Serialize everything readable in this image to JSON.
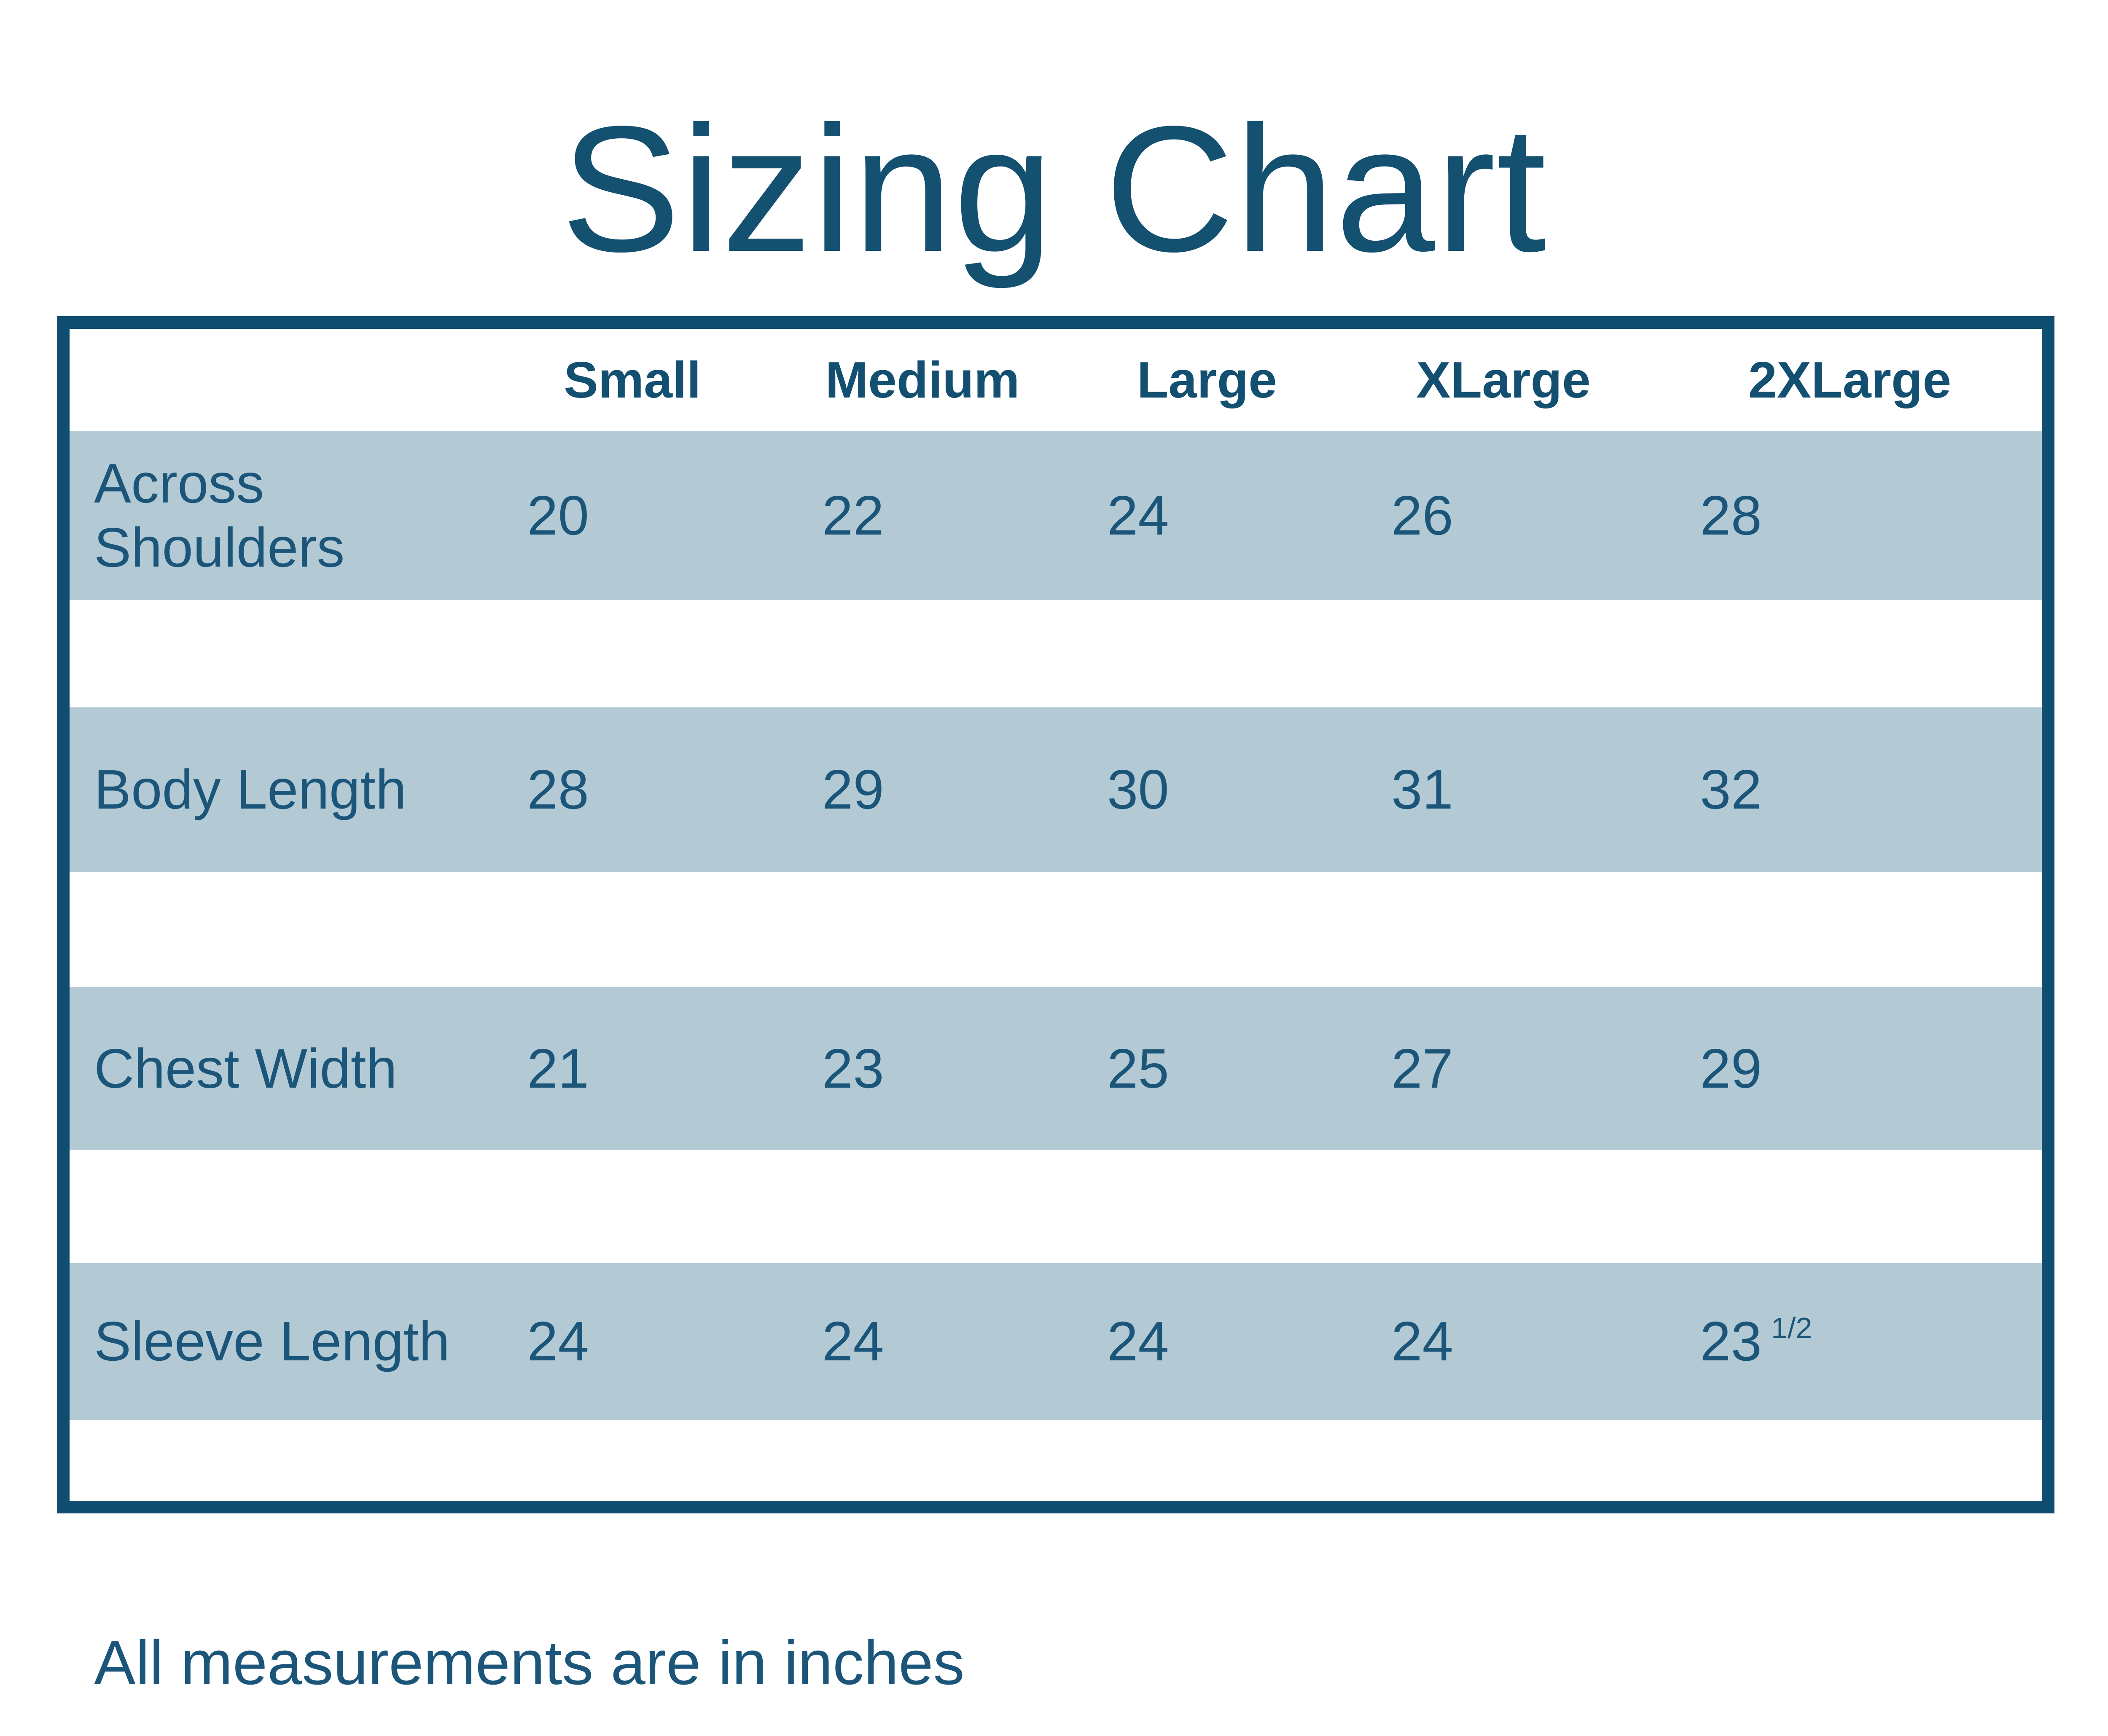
{
  "title": "Sizing Chart",
  "footnote": "All measurements are in inches",
  "colors": {
    "navy_text": "#1b567a",
    "header_text": "#134f70",
    "border": "#0f4e70",
    "stripe": "#b3cad5",
    "background": "#ffffff"
  },
  "table": {
    "headers": [
      "Small",
      "Medium",
      "Large",
      "XLarge",
      "2XLarge"
    ],
    "rows": [
      {
        "label": "Across Shoulders",
        "values": [
          "20",
          "22",
          "24",
          "26",
          "28"
        ]
      },
      {
        "label": "Body Length",
        "values": [
          "28",
          "29",
          "30",
          "31",
          "32"
        ]
      },
      {
        "label": "Chest Width",
        "values": [
          "21",
          "23",
          "25",
          "27",
          "29"
        ]
      },
      {
        "label": "Sleeve Length",
        "values": [
          "24",
          "24",
          "24",
          "24",
          "23"
        ],
        "sup": "1/2"
      }
    ]
  },
  "chart_data": {
    "type": "table",
    "title": "Sizing Chart",
    "units": "inches",
    "columns": [
      "Small",
      "Medium",
      "Large",
      "XLarge",
      "2XLarge"
    ],
    "rows": [
      {
        "measurement": "Across Shoulders",
        "values": [
          20,
          22,
          24,
          26,
          28
        ]
      },
      {
        "measurement": "Body Length",
        "values": [
          28,
          29,
          30,
          31,
          32
        ]
      },
      {
        "measurement": "Chest Width",
        "values": [
          21,
          23,
          25,
          27,
          29
        ]
      },
      {
        "measurement": "Sleeve Length",
        "values": [
          24,
          24,
          24,
          24,
          23.5
        ]
      }
    ],
    "note": "All measurements are in inches"
  }
}
